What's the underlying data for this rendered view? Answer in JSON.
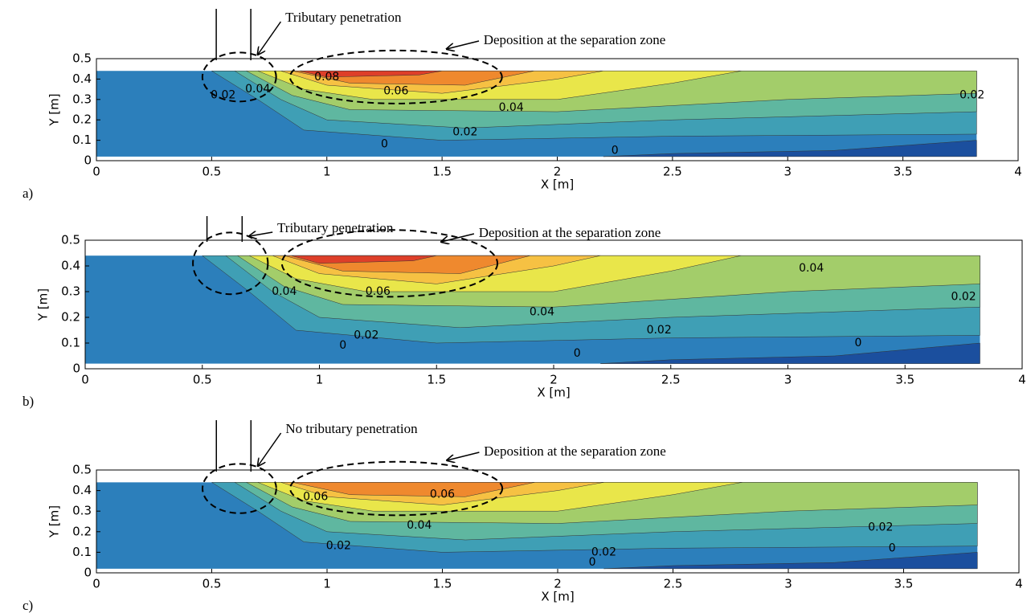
{
  "chart_data": [
    {
      "type": "contour",
      "panel_label": "a)",
      "xlabel": "X [m]",
      "ylabel": "Y [m]",
      "annotations": [
        "Tributary penetration",
        "Deposition at the separation zone"
      ],
      "xlim": [
        0,
        4
      ],
      "ylim": [
        0,
        0.5
      ],
      "xticks": [
        0,
        0.5,
        1,
        1.5,
        2,
        2.5,
        3,
        3.5,
        4
      ],
      "yticks": [
        0,
        0.1,
        0.2,
        0.3,
        0.4,
        0.5
      ],
      "colors": [
        "#1b4f9e",
        "#2c7fbb",
        "#3f9fb5",
        "#5fb7a0",
        "#a3cd6a",
        "#e9e64a",
        "#f6c143",
        "#ef892e",
        "#de3f29"
      ],
      "contour_labels": [
        0.08,
        0.06,
        0.04,
        0.02,
        0,
        0,
        0.02,
        0.02,
        0.04
      ]
    },
    {
      "type": "contour",
      "panel_label": "b)",
      "xlabel": "X [m]",
      "ylabel": "Y [m]",
      "annotations": [
        "Tributary penetration",
        "Deposition at the separation zone"
      ],
      "xlim": [
        0,
        4
      ],
      "ylim": [
        0,
        0.5
      ],
      "xticks": [
        0,
        0.5,
        1,
        1.5,
        2,
        2.5,
        3,
        3.5,
        4
      ],
      "yticks": [
        0,
        0.1,
        0.2,
        0.3,
        0.4,
        0.5
      ],
      "colors": [
        "#1b4f9e",
        "#2c7fbb",
        "#3f9fb5",
        "#5fb7a0",
        "#a3cd6a",
        "#e9e64a",
        "#f6c143",
        "#ef892e",
        "#de3f29"
      ],
      "contour_labels": [
        0.06,
        0.04,
        0.02,
        0,
        0,
        0.04,
        0.02,
        0.02,
        0,
        0.04
      ]
    },
    {
      "type": "contour",
      "panel_label": "c)",
      "xlabel": "X [m]",
      "ylabel": "Y [m]",
      "annotations": [
        "No tributary penetration",
        "Deposition at the separation zone"
      ],
      "xlim": [
        0,
        4
      ],
      "ylim": [
        0,
        0.5
      ],
      "xticks": [
        0,
        0.5,
        1,
        1.5,
        2,
        2.5,
        3,
        3.5,
        4
      ],
      "yticks": [
        0,
        0.1,
        0.2,
        0.3,
        0.4,
        0.5
      ],
      "colors": [
        "#1b4f9e",
        "#2c7fbb",
        "#3f9fb5",
        "#5fb7a0",
        "#a3cd6a",
        "#e9e64a",
        "#f6c143",
        "#ef892e"
      ],
      "contour_labels": [
        0.06,
        0.06,
        0.04,
        0.02,
        0.02,
        0,
        0.02,
        0
      ]
    }
  ]
}
